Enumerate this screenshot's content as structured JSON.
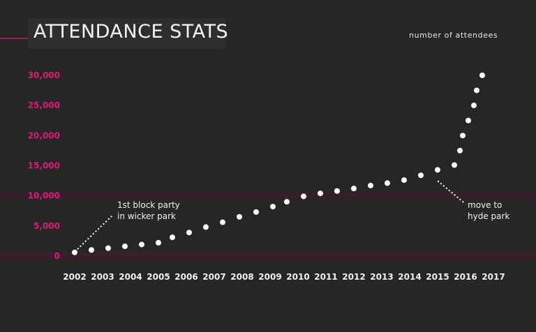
{
  "title": "ATTENDANCE STATS",
  "units_label": "number of attendees",
  "annotations": {
    "first": {
      "line1": "1st block party",
      "line2": "in wicker park"
    },
    "second": {
      "line1": "move to",
      "line2": "hyde park"
    }
  },
  "colors": {
    "background": "#262624",
    "accent": "#e0197d",
    "gridline_warm": "#e2562e",
    "point": "#ffffff"
  },
  "chart_data": {
    "type": "scatter",
    "title": "ATTENDANCE STATS",
    "ylabel": "number of attendees",
    "xlabel": "",
    "ylim": [
      0,
      30000
    ],
    "yticks": [
      0,
      5000,
      10000,
      15000,
      20000,
      25000,
      30000
    ],
    "ytick_labels": [
      "0",
      "5,000",
      "10,000",
      "15,000",
      "20,000",
      "25,000",
      "30,000"
    ],
    "xticks": [
      2002,
      2003,
      2004,
      2005,
      2006,
      2007,
      2008,
      2009,
      2010,
      2011,
      2012,
      2013,
      2014,
      2015,
      2016,
      2017
    ],
    "grid": true,
    "points": [
      {
        "x": 2002.0,
        "y": 600
      },
      {
        "x": 2002.6,
        "y": 1000
      },
      {
        "x": 2003.2,
        "y": 1300
      },
      {
        "x": 2003.8,
        "y": 1600
      },
      {
        "x": 2004.4,
        "y": 1900
      },
      {
        "x": 2005.0,
        "y": 2200
      },
      {
        "x": 2005.5,
        "y": 3100
      },
      {
        "x": 2006.1,
        "y": 3900
      },
      {
        "x": 2006.7,
        "y": 4800
      },
      {
        "x": 2007.3,
        "y": 5600
      },
      {
        "x": 2007.9,
        "y": 6500
      },
      {
        "x": 2008.5,
        "y": 7300
      },
      {
        "x": 2009.1,
        "y": 8200
      },
      {
        "x": 2009.6,
        "y": 9000
      },
      {
        "x": 2010.2,
        "y": 9900
      },
      {
        "x": 2010.8,
        "y": 10400
      },
      {
        "x": 2011.4,
        "y": 10800
      },
      {
        "x": 2012.0,
        "y": 11200
      },
      {
        "x": 2012.6,
        "y": 11700
      },
      {
        "x": 2013.2,
        "y": 12100
      },
      {
        "x": 2013.8,
        "y": 12600
      },
      {
        "x": 2014.4,
        "y": 13400
      },
      {
        "x": 2015.0,
        "y": 14300
      },
      {
        "x": 2015.6,
        "y": 15100
      },
      {
        "x": 2015.8,
        "y": 17500
      },
      {
        "x": 2015.9,
        "y": 20000
      },
      {
        "x": 2016.1,
        "y": 22500
      },
      {
        "x": 2016.3,
        "y": 25000
      },
      {
        "x": 2016.4,
        "y": 27500
      },
      {
        "x": 2016.6,
        "y": 30000
      }
    ]
  }
}
